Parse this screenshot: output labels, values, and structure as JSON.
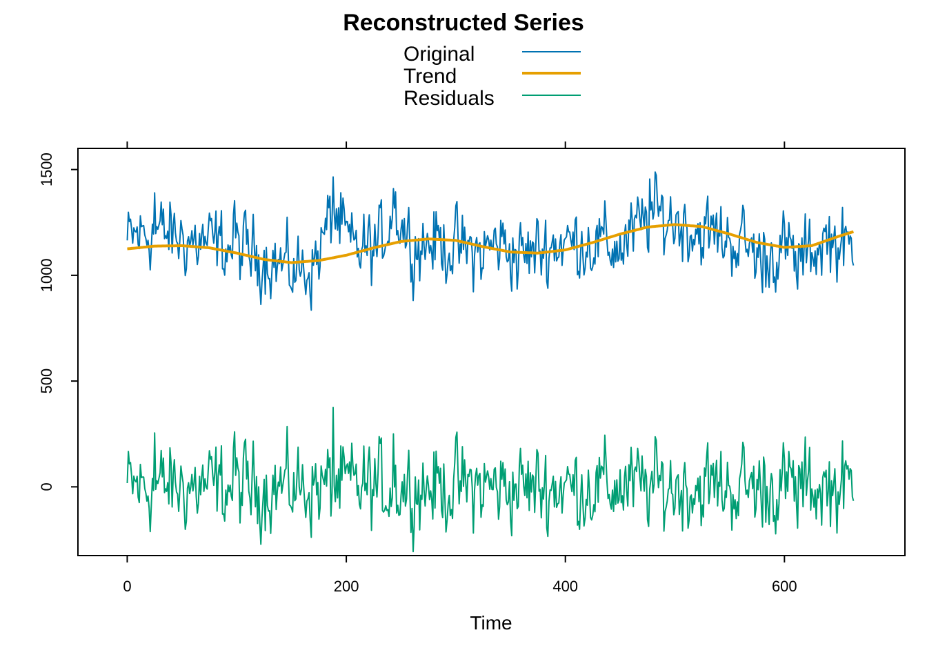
{
  "chart_data": {
    "type": "line",
    "title": "Reconstructed Series",
    "xlabel": "Time",
    "ylabel": "",
    "xlim": [
      -45,
      710
    ],
    "ylim": [
      -325,
      1600
    ],
    "xticks": [
      0,
      200,
      400,
      600
    ],
    "yticks": [
      0,
      500,
      1000,
      1500
    ],
    "legend_position": "top-center",
    "grid": false,
    "n_points": 664,
    "series": [
      {
        "name": "Original",
        "color": "#0072B2",
        "line_width": 2,
        "anchors_x": [
          0,
          5,
          24,
          60,
          100,
          130,
          150,
          170,
          188,
          205,
          230,
          243,
          260,
          280,
          300,
          322,
          340,
          360,
          390,
          420,
          450,
          480,
          500,
          520,
          560,
          580,
          600,
          612,
          640,
          664
        ],
        "anchors_y": [
          1150,
          1180,
          1210,
          1160,
          1130,
          1080,
          1020,
          1040,
          1300,
          1120,
          1130,
          1330,
          1140,
          1160,
          1130,
          1100,
          1160,
          1090,
          1150,
          1160,
          1130,
          1290,
          1260,
          1210,
          1160,
          1080,
          1130,
          1060,
          1180,
          1100
        ],
        "note_peaks": [
          [
            188,
            1465
          ],
          [
            477,
            1455
          ],
          [
            25,
            1390
          ],
          [
            243,
            1410
          ],
          [
            356,
            935
          ],
          [
            612,
            935
          ]
        ]
      },
      {
        "name": "Trend",
        "color": "#E69F00",
        "line_width": 4,
        "x": [
          0,
          25,
          50,
          75,
          100,
          125,
          150,
          175,
          200,
          225,
          250,
          275,
          300,
          325,
          350,
          375,
          400,
          425,
          450,
          475,
          500,
          525,
          550,
          575,
          600,
          625,
          650,
          664
        ],
        "y": [
          1125,
          1138,
          1140,
          1130,
          1105,
          1075,
          1060,
          1070,
          1095,
          1130,
          1160,
          1172,
          1165,
          1135,
          1110,
          1105,
          1120,
          1155,
          1195,
          1228,
          1240,
          1230,
          1195,
          1155,
          1132,
          1140,
          1185,
          1208
        ]
      },
      {
        "name": "Residuals",
        "color": "#009E73",
        "line_width": 2,
        "amplitude": 95,
        "note_peaks": [
          [
            188,
            375
          ],
          [
            25,
            255
          ],
          [
            98,
            260
          ],
          [
            243,
            250
          ],
          [
            259,
            -215
          ],
          [
            580,
            -190
          ],
          [
            612,
            -195
          ]
        ]
      }
    ]
  }
}
